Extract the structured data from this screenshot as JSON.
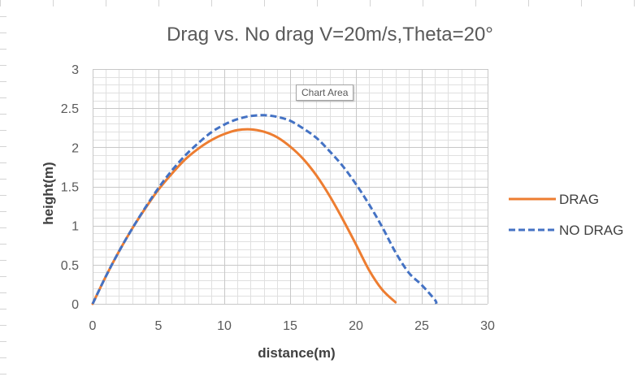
{
  "tooltip": "Chart Area",
  "chart_data": {
    "type": "line",
    "title": "Drag vs. No drag V=20m/s,Theta=20°",
    "xlabel": "distance(m)",
    "ylabel": "height(m)",
    "xlim": [
      0,
      30
    ],
    "ylim": [
      0,
      3
    ],
    "x_major_step": 5,
    "x_minor_step": 1,
    "y_major_step": 0.5,
    "y_minor_step": 0.1,
    "grid": true,
    "legend_position": "right",
    "series": [
      {
        "name": "DRAG",
        "color": "#ED7D31",
        "dash": "solid",
        "x": [
          0,
          1,
          2,
          3,
          4,
          5,
          6,
          7,
          8,
          9,
          10,
          11,
          12,
          13,
          14,
          15,
          16,
          17,
          18,
          19,
          20,
          21,
          22,
          23
        ],
        "y": [
          0,
          0.35,
          0.67,
          0.96,
          1.22,
          1.46,
          1.66,
          1.84,
          1.98,
          2.09,
          2.17,
          2.22,
          2.23,
          2.2,
          2.13,
          2.01,
          1.85,
          1.64,
          1.38,
          1.08,
          0.76,
          0.43,
          0.18,
          0.02
        ]
      },
      {
        "name": "NO DRAG",
        "color": "#4472C4",
        "dash": "dashed",
        "x": [
          0,
          1,
          2,
          3,
          4,
          5,
          6,
          7,
          8,
          9,
          10,
          11,
          12,
          13,
          14,
          15,
          16,
          17,
          18,
          19,
          20,
          21,
          22,
          23,
          24,
          25,
          26,
          26.1
        ],
        "y": [
          0,
          0.35,
          0.67,
          0.96,
          1.23,
          1.48,
          1.7,
          1.89,
          2.05,
          2.19,
          2.29,
          2.36,
          2.4,
          2.41,
          2.39,
          2.34,
          2.24,
          2.12,
          1.95,
          1.76,
          1.53,
          1.27,
          0.98,
          0.66,
          0.4,
          0.24,
          0.05,
          0
        ]
      }
    ]
  }
}
